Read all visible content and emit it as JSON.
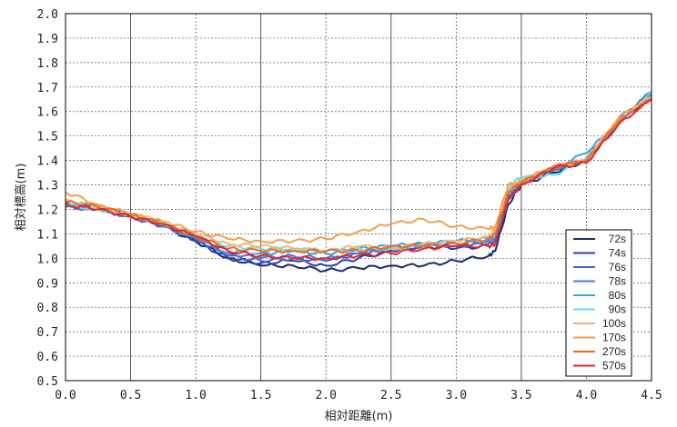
{
  "chart_data": {
    "type": "line",
    "xlabel": "相対距離(m)",
    "ylabel": "相対標高(m)",
    "xlim": [
      0.0,
      4.5
    ],
    "ylim": [
      0.5,
      2.0
    ],
    "x_ticks": [
      "0.0",
      "0.5",
      "1.0",
      "1.5",
      "2.0",
      "2.5",
      "3.0",
      "3.5",
      "4.0",
      "4.5"
    ],
    "y_ticks": [
      "0.5",
      "0.6",
      "0.7",
      "0.8",
      "0.9",
      "1.0",
      "1.1",
      "1.2",
      "1.3",
      "1.4",
      "1.5",
      "1.6",
      "1.7",
      "1.8",
      "1.9",
      "2.0"
    ],
    "grid": true,
    "legend_position": "bottom-right",
    "x": [
      0.0,
      0.25,
      0.5,
      0.75,
      1.0,
      1.25,
      1.5,
      1.75,
      2.0,
      2.25,
      2.5,
      2.75,
      3.0,
      3.25,
      3.3,
      3.4,
      3.5,
      3.75,
      4.0,
      4.25,
      4.5
    ],
    "series": [
      {
        "name": "72s",
        "color": "#1a2a6c",
        "values": [
          1.21,
          1.2,
          1.17,
          1.13,
          1.07,
          1.0,
          0.97,
          0.97,
          0.95,
          0.96,
          0.97,
          0.97,
          0.99,
          1.01,
          1.03,
          1.22,
          1.3,
          1.35,
          1.4,
          1.55,
          1.68
        ]
      },
      {
        "name": "74s",
        "color": "#2a40a8",
        "values": [
          1.23,
          1.21,
          1.17,
          1.14,
          1.07,
          1.0,
          0.98,
          0.99,
          0.97,
          1.0,
          1.03,
          1.05,
          1.04,
          1.05,
          1.06,
          1.25,
          1.31,
          1.36,
          1.4,
          1.56,
          1.68
        ]
      },
      {
        "name": "76s",
        "color": "#3d5fd0",
        "values": [
          1.22,
          1.2,
          1.18,
          1.14,
          1.08,
          1.01,
          0.99,
          1.0,
          0.99,
          1.02,
          1.04,
          1.06,
          1.05,
          1.06,
          1.07,
          1.24,
          1.3,
          1.36,
          1.41,
          1.56,
          1.67
        ]
      },
      {
        "name": "78s",
        "color": "#4a7ad8",
        "values": [
          1.21,
          1.2,
          1.17,
          1.13,
          1.08,
          1.02,
          1.0,
          1.01,
          1.0,
          1.02,
          1.04,
          1.05,
          1.06,
          1.07,
          1.08,
          1.26,
          1.31,
          1.36,
          1.4,
          1.57,
          1.68
        ]
      },
      {
        "name": "80s",
        "color": "#3aa0e0",
        "values": [
          1.22,
          1.21,
          1.18,
          1.14,
          1.09,
          1.03,
          1.02,
          1.03,
          1.02,
          1.04,
          1.05,
          1.06,
          1.07,
          1.08,
          1.09,
          1.27,
          1.32,
          1.37,
          1.43,
          1.56,
          1.67
        ]
      },
      {
        "name": "90s",
        "color": "#66dcf0",
        "values": [
          1.22,
          1.2,
          1.18,
          1.14,
          1.09,
          1.05,
          1.04,
          1.04,
          1.03,
          1.04,
          1.04,
          1.05,
          1.06,
          1.08,
          1.1,
          1.3,
          1.33,
          1.34,
          1.41,
          1.55,
          1.68
        ]
      },
      {
        "name": "100s",
        "color": "#f0b878",
        "values": [
          1.24,
          1.21,
          1.18,
          1.15,
          1.1,
          1.06,
          1.05,
          1.04,
          1.03,
          1.05,
          1.04,
          1.06,
          1.07,
          1.09,
          1.12,
          1.29,
          1.32,
          1.37,
          1.4,
          1.58,
          1.66
        ]
      },
      {
        "name": "170s",
        "color": "#f0a050",
        "values": [
          1.27,
          1.22,
          1.18,
          1.15,
          1.11,
          1.08,
          1.07,
          1.07,
          1.08,
          1.11,
          1.14,
          1.16,
          1.13,
          1.12,
          1.13,
          1.3,
          1.31,
          1.38,
          1.4,
          1.57,
          1.66
        ]
      },
      {
        "name": "270s",
        "color": "#ee6a1c",
        "values": [
          1.23,
          1.21,
          1.18,
          1.14,
          1.09,
          1.04,
          1.03,
          1.03,
          1.03,
          1.03,
          1.05,
          1.05,
          1.06,
          1.08,
          1.1,
          1.27,
          1.31,
          1.37,
          1.4,
          1.56,
          1.65
        ]
      },
      {
        "name": "570s",
        "color": "#e0282c",
        "values": [
          1.22,
          1.2,
          1.17,
          1.14,
          1.09,
          1.03,
          1.01,
          1.0,
          1.0,
          1.01,
          1.02,
          1.04,
          1.05,
          1.05,
          1.06,
          1.24,
          1.3,
          1.37,
          1.39,
          1.55,
          1.65
        ]
      }
    ]
  }
}
